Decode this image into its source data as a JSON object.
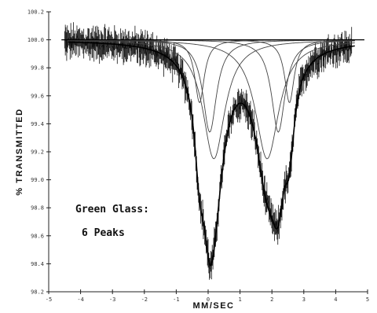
{
  "chart_data": {
    "type": "line",
    "xlabel": "MM/SEC",
    "ylabel": "% TRANSMITTED",
    "xlim": [
      -5,
      5
    ],
    "ylim": [
      98.2,
      100.2
    ],
    "x_ticks": [
      -5,
      -4,
      -3,
      -2,
      -1,
      0,
      1,
      2,
      3,
      4,
      5
    ],
    "y_ticks": [
      98.2,
      98.4,
      98.6,
      98.8,
      99.0,
      99.2,
      99.4,
      99.6,
      99.8,
      100.0,
      100.2
    ],
    "annotations": [
      "Green Glass:",
      "6 Peaks"
    ],
    "baseline": 100.0,
    "peaks": [
      {
        "center": -0.27,
        "depth": 0.45,
        "hwhm": 0.18
      },
      {
        "center": 0.05,
        "depth": 0.66,
        "hwhm": 0.26
      },
      {
        "center": 0.18,
        "depth": 0.85,
        "hwhm": 0.42
      },
      {
        "center": 1.85,
        "depth": 0.85,
        "hwhm": 0.45
      },
      {
        "center": 2.2,
        "depth": 0.66,
        "hwhm": 0.26
      },
      {
        "center": 2.55,
        "depth": 0.45,
        "hwhm": 0.18
      }
    ],
    "data_x_range": [
      -4.5,
      4.5
    ],
    "series": [
      {
        "values_from": "peaks",
        "style": "noisy-data"
      },
      {
        "values_from": "peaks",
        "style": "component-fits"
      },
      {
        "values_from": "peaks",
        "style": "total-fit"
      }
    ]
  }
}
